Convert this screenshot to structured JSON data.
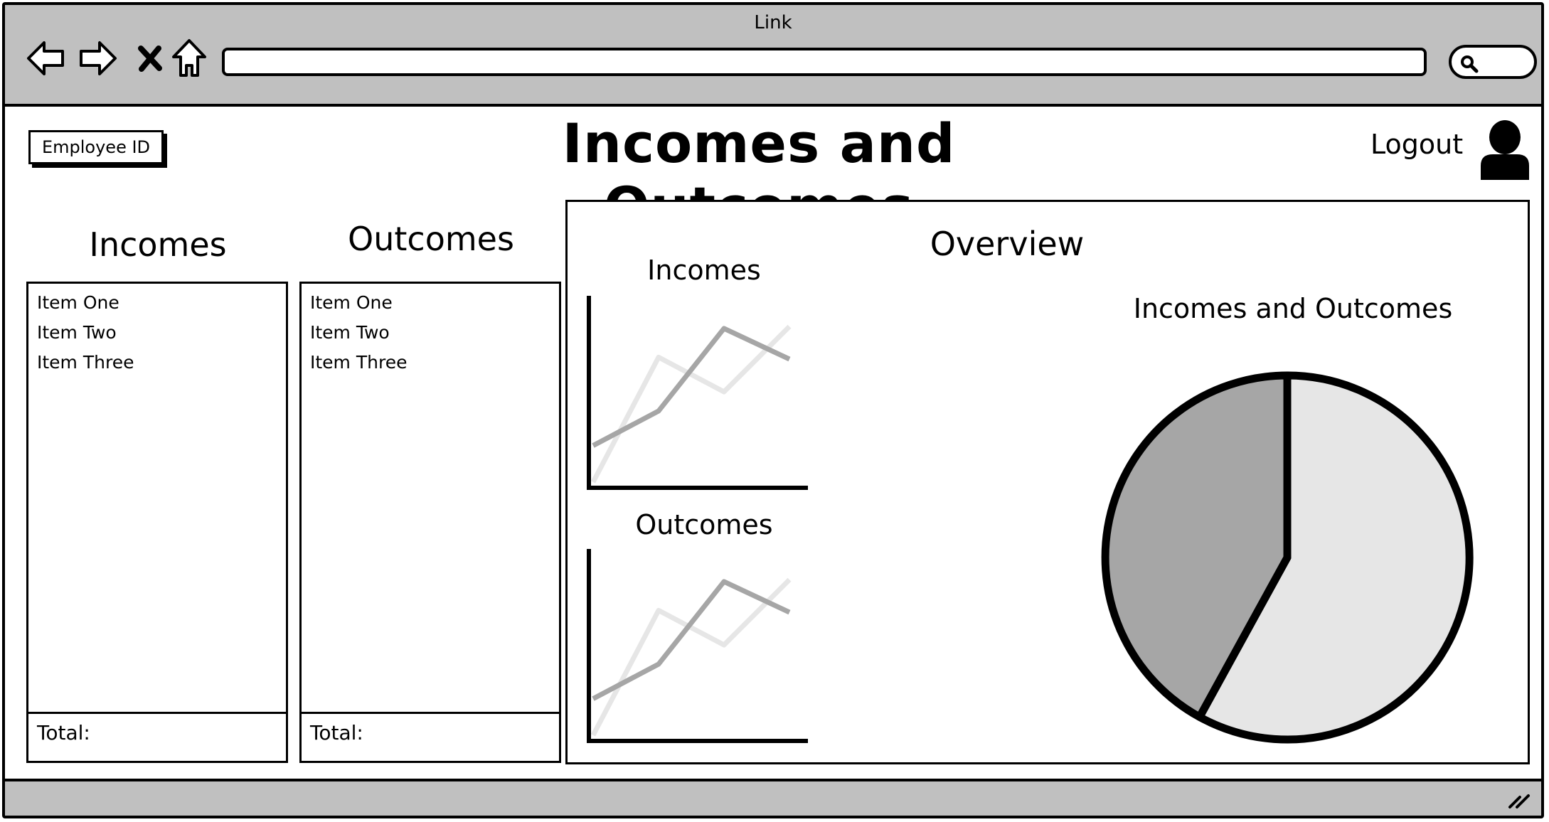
{
  "browser": {
    "title": "Link",
    "address_value": "",
    "search_placeholder": ""
  },
  "header": {
    "employee_button_label": "Employee ID",
    "page_title": "Incomes and Outcomes",
    "logout_label": "Logout"
  },
  "incomes": {
    "title": "Incomes",
    "items": [
      "Item One",
      "Item Two",
      "Item Three"
    ],
    "total_label": "Total:"
  },
  "outcomes": {
    "title": "Outcomes",
    "items": [
      "Item One",
      "Item Two",
      "Item Three"
    ],
    "total_label": "Total:"
  },
  "overview": {
    "title": "Overview"
  },
  "chart_data": [
    {
      "type": "line",
      "title": "Incomes",
      "x": [
        0,
        1,
        2,
        3
      ],
      "series": [
        {
          "values": [
            0.22,
            0.4,
            0.83,
            0.67
          ],
          "color": "#a6a6a6"
        },
        {
          "values": [
            0.03,
            0.68,
            0.5,
            0.84
          ],
          "color": "#e6e6e6"
        }
      ],
      "grid": false
    },
    {
      "type": "line",
      "title": "Outcomes",
      "x": [
        0,
        1,
        2,
        3
      ],
      "series": [
        {
          "values": [
            0.22,
            0.4,
            0.83,
            0.67
          ],
          "color": "#a6a6a6"
        },
        {
          "values": [
            0.03,
            0.68,
            0.5,
            0.84
          ],
          "color": "#e6e6e6"
        }
      ],
      "grid": false
    },
    {
      "type": "pie",
      "title": "Incomes and Outcomes",
      "values": [
        58,
        42
      ],
      "colors": [
        "#e6e6e6",
        "#a6a6a6"
      ]
    }
  ]
}
